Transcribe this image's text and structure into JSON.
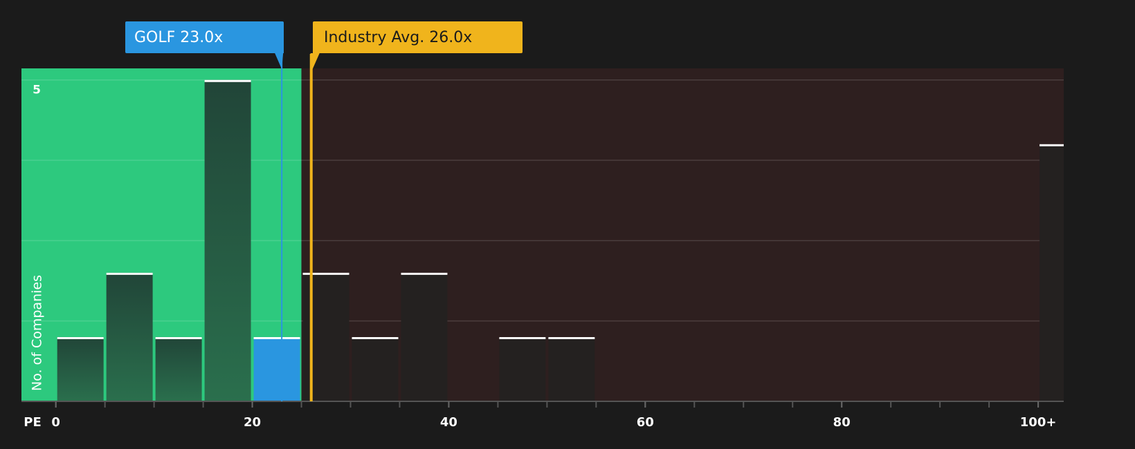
{
  "chart_data": {
    "type": "histogram",
    "xlabel": "PE",
    "ylabel": "No. of Companies",
    "bins": [
      0,
      5,
      10,
      15,
      20,
      25,
      30,
      35,
      40,
      45,
      50,
      55,
      60,
      65,
      70,
      75,
      80,
      85,
      90,
      95,
      100,
      105
    ],
    "values": [
      1,
      2,
      1,
      5,
      1,
      2,
      1,
      2,
      0,
      1,
      1,
      0,
      0,
      0,
      0,
      0,
      0,
      0,
      0,
      0,
      4
    ],
    "xlim": [
      -3.5,
      102.6
    ],
    "ylim": [
      0,
      5.18
    ],
    "xticks": [
      0,
      20,
      40,
      60,
      80,
      {
        "value": 100,
        "label": "100+"
      }
    ],
    "yticks": [
      5
    ],
    "ygrid": [
      1.25,
      2.5,
      3.75,
      5
    ],
    "zone_split": 25,
    "highlight_bin": 4,
    "colors": {
      "good_zone": "#2dc97e",
      "bad_zone": "#2e1f1f",
      "highlight": "#2a96e0",
      "company": "#2a96e0",
      "industry": "#f0b41c"
    },
    "company": {
      "label": "GOLF 23.0x",
      "value": 23
    },
    "industry": {
      "label": "Industry Avg. 26.0x",
      "value": 26
    }
  }
}
